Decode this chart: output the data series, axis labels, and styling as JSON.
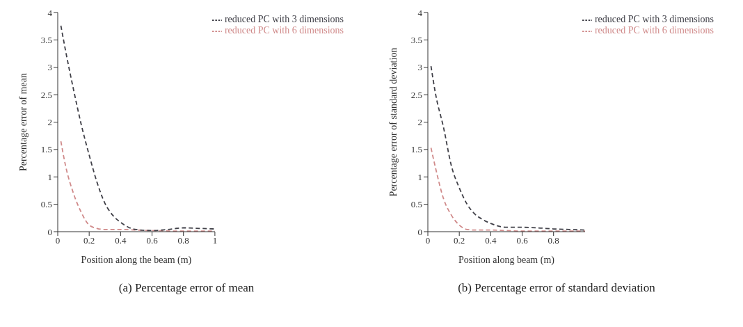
{
  "chart_data": [
    {
      "type": "line",
      "title": "(a) Percentage error of mean",
      "xlabel": "Position along the beam (m)",
      "ylabel": "Percentage error of mean",
      "xlim": [
        0,
        1
      ],
      "xticks": [
        0,
        0.2,
        0.4,
        0.6,
        0.8,
        1
      ],
      "ylim": [
        0,
        4
      ],
      "yticks": [
        0,
        0.5,
        1,
        1.5,
        2,
        2.5,
        3,
        3.5,
        4
      ],
      "grid": false,
      "legend": "top right",
      "marker": "none",
      "series": [
        {
          "name": "reduced PC with 6 dimensions",
          "color": "#d08a8a",
          "line_style": "dashed",
          "x": [
            0.02,
            0.05,
            0.1,
            0.15,
            0.2,
            0.25,
            0.3,
            0.4,
            0.5,
            0.6,
            0.8,
            1.0
          ],
          "values": [
            1.65,
            1.2,
            0.7,
            0.35,
            0.12,
            0.06,
            0.04,
            0.04,
            0.03,
            0.02,
            0.01,
            0.01
          ]
        },
        {
          "name": "reduced PC with 3 dimensions",
          "color": "#404048",
          "line_style": "dashed",
          "x": [
            0.02,
            0.05,
            0.1,
            0.15,
            0.2,
            0.25,
            0.3,
            0.35,
            0.4,
            0.45,
            0.5,
            0.6,
            0.7,
            0.8,
            0.9,
            1.0
          ],
          "values": [
            3.76,
            3.3,
            2.6,
            1.95,
            1.4,
            0.9,
            0.52,
            0.3,
            0.17,
            0.08,
            0.04,
            0.02,
            0.04,
            0.07,
            0.06,
            0.05
          ]
        }
      ]
    },
    {
      "type": "line",
      "title": "(b) Percentage error of standard deviation",
      "xlabel": "Position along beam (m)",
      "ylabel": "Percentage error of standard deviation",
      "xlim": [
        0,
        1
      ],
      "xticks": [
        0,
        0.2,
        0.4,
        0.6,
        0.8
      ],
      "ylim": [
        0,
        4
      ],
      "yticks": [
        0,
        0.5,
        1,
        1.5,
        2,
        2.5,
        3,
        3.5,
        4
      ],
      "grid": false,
      "legend": "top right",
      "marker": "none",
      "series": [
        {
          "name": "reduced PC with 6 dimensions",
          "color": "#d08a8a",
          "line_style": "dashed",
          "x": [
            0.02,
            0.05,
            0.1,
            0.15,
            0.2,
            0.25,
            0.3,
            0.4,
            0.5,
            0.6,
            0.8,
            1.0
          ],
          "values": [
            1.53,
            1.15,
            0.6,
            0.3,
            0.12,
            0.04,
            0.03,
            0.03,
            0.02,
            0.01,
            0.01,
            0.01
          ]
        },
        {
          "name": "reduced PC with 3 dimensions",
          "color": "#404048",
          "line_style": "dashed",
          "x": [
            0.02,
            0.05,
            0.1,
            0.15,
            0.2,
            0.25,
            0.3,
            0.35,
            0.4,
            0.5,
            0.6,
            0.7,
            0.8,
            0.9,
            1.0
          ],
          "values": [
            3.02,
            2.5,
            1.9,
            1.2,
            0.8,
            0.5,
            0.32,
            0.22,
            0.15,
            0.08,
            0.08,
            0.07,
            0.05,
            0.04,
            0.03
          ]
        }
      ]
    }
  ]
}
